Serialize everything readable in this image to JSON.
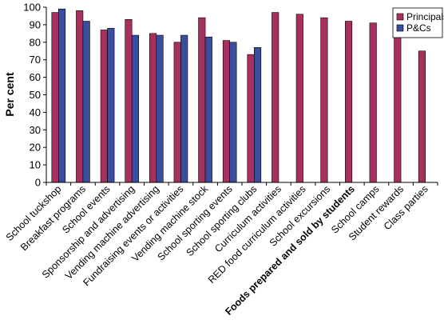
{
  "chart_data": {
    "type": "bar",
    "ylabel": "Per cent",
    "ylim": [
      0,
      100
    ],
    "yticks": [
      0,
      10,
      20,
      30,
      40,
      50,
      60,
      70,
      80,
      90,
      100
    ],
    "grid": false,
    "legend_position": "top-right",
    "categories": [
      "School tuckshop",
      "Breakfast programs",
      "School events",
      "Sponsorship and advertising",
      "Vending machine advertising",
      "Fundraising events or activities",
      "Vending machine stock",
      "School sporting events",
      "School sporting clubs",
      "Curriculum activities",
      "RED food curriculum activities",
      "School excursions",
      "Foods prepared and sold by students",
      "School camps",
      "Student rewards",
      "Class parties"
    ],
    "bold_categories": [
      "Foods prepared and sold by students"
    ],
    "series": [
      {
        "name": "Principals",
        "color": "#a8305e",
        "values": [
          97,
          98,
          87,
          93,
          85,
          80,
          94,
          81,
          73,
          97,
          96,
          94,
          92,
          91,
          86,
          75
        ]
      },
      {
        "name": "P&Cs",
        "color": "#3a4ea0",
        "values": [
          99,
          92,
          88,
          84,
          84,
          84,
          83,
          80,
          77,
          null,
          null,
          null,
          null,
          null,
          null,
          null
        ]
      }
    ]
  }
}
